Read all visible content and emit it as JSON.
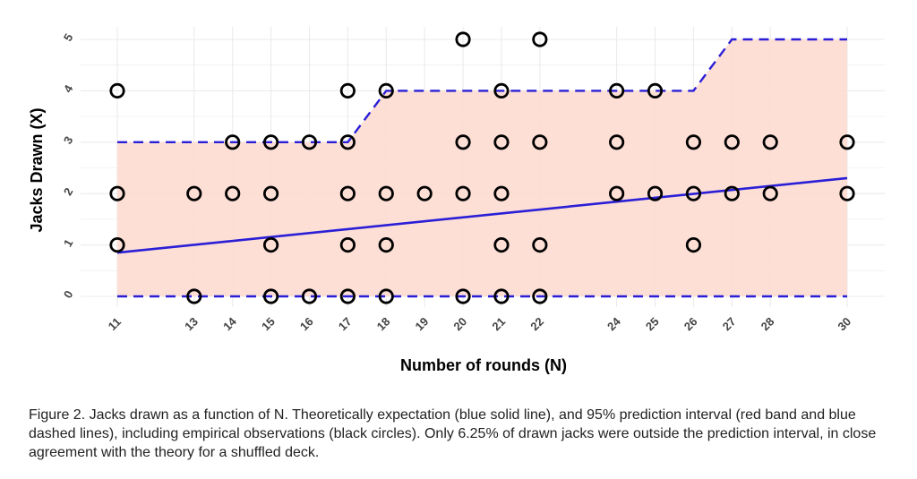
{
  "chart_data": {
    "type": "scatter",
    "title": "",
    "xlabel": "Number of rounds (N)",
    "ylabel": "Jacks Drawn (X)",
    "xlim": [
      11,
      30
    ],
    "ylim": [
      0,
      5
    ],
    "x_ticks": [
      11,
      13,
      14,
      15,
      16,
      17,
      18,
      19,
      20,
      21,
      22,
      24,
      25,
      26,
      27,
      28,
      30
    ],
    "y_ticks": [
      0,
      1,
      2,
      3,
      4,
      5
    ],
    "grid": true,
    "colors": {
      "band": "#fddbd0",
      "line": "#2a1fd6",
      "points": "#000000",
      "grid": "#ebebeb"
    },
    "prediction_band": {
      "name": "95% prediction interval",
      "upper": [
        [
          11,
          3
        ],
        [
          17,
          3
        ],
        [
          18,
          4
        ],
        [
          26,
          4
        ],
        [
          27,
          5
        ],
        [
          30,
          5
        ]
      ],
      "lower": [
        [
          11,
          0
        ],
        [
          30,
          0
        ]
      ]
    },
    "expectation_line": {
      "name": "Theoretical expectation",
      "x": [
        11,
        30
      ],
      "y": [
        0.85,
        2.3
      ]
    },
    "points": [
      [
        11,
        4
      ],
      [
        11,
        2
      ],
      [
        11,
        1
      ],
      [
        13,
        2
      ],
      [
        13,
        0
      ],
      [
        14,
        3
      ],
      [
        14,
        2
      ],
      [
        15,
        3
      ],
      [
        15,
        2
      ],
      [
        15,
        1
      ],
      [
        15,
        0
      ],
      [
        16,
        3
      ],
      [
        16,
        0
      ],
      [
        17,
        4
      ],
      [
        17,
        3
      ],
      [
        17,
        2
      ],
      [
        17,
        1
      ],
      [
        17,
        0
      ],
      [
        18,
        4
      ],
      [
        18,
        2
      ],
      [
        18,
        1
      ],
      [
        18,
        0
      ],
      [
        19,
        2
      ],
      [
        20,
        5
      ],
      [
        20,
        3
      ],
      [
        20,
        2
      ],
      [
        20,
        0
      ],
      [
        21,
        4
      ],
      [
        21,
        3
      ],
      [
        21,
        2
      ],
      [
        21,
        1
      ],
      [
        21,
        0
      ],
      [
        22,
        5
      ],
      [
        22,
        3
      ],
      [
        22,
        1
      ],
      [
        22,
        0
      ],
      [
        24,
        4
      ],
      [
        24,
        3
      ],
      [
        24,
        2
      ],
      [
        25,
        4
      ],
      [
        25,
        2
      ],
      [
        26,
        3
      ],
      [
        26,
        2
      ],
      [
        26,
        1
      ],
      [
        27,
        3
      ],
      [
        27,
        2
      ],
      [
        28,
        3
      ],
      [
        28,
        2
      ],
      [
        30,
        3
      ],
      [
        30,
        2
      ]
    ]
  },
  "caption": "Figure 2. Jacks drawn as a function of N. Theoretically expectation (blue solid line), and 95% prediction interval (red band and blue dashed lines), including empirical observations (black circles). Only 6.25% of drawn jacks were outside the prediction interval, in close agreement with the theory for a shuffled deck."
}
